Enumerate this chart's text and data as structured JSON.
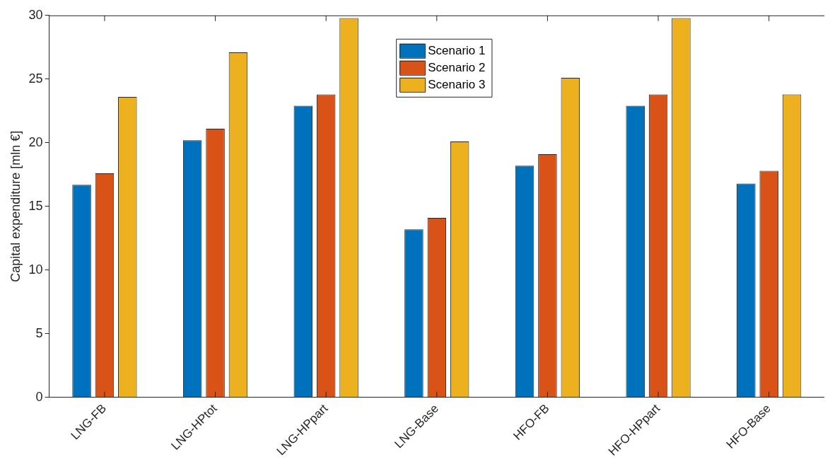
{
  "chart_data": {
    "type": "bar",
    "ylabel": "Capital expenditure [mln €]",
    "categories": [
      "LNG-FB",
      "LNG-HPtot",
      "LNG-HPpart",
      "LNG-Base",
      "HFO-FB",
      "HFO-HPpart",
      "HFO-Base"
    ],
    "series": [
      {
        "name": "Scenario 1",
        "color": "#0072bd",
        "values": [
          16.7,
          20.2,
          22.9,
          13.2,
          18.2,
          22.9,
          16.8
        ]
      },
      {
        "name": "Scenario 2",
        "color": "#d95319",
        "values": [
          17.6,
          21.1,
          23.8,
          14.1,
          19.1,
          23.8,
          17.8
        ]
      },
      {
        "name": "Scenario 3",
        "color": "#edb120",
        "values": [
          23.6,
          27.1,
          29.8,
          20.1,
          25.1,
          29.8,
          23.8
        ]
      }
    ],
    "ylim": [
      0,
      30
    ],
    "yticks": [
      0,
      5,
      10,
      15,
      20,
      25,
      30
    ],
    "grid": false,
    "legend": "top"
  }
}
